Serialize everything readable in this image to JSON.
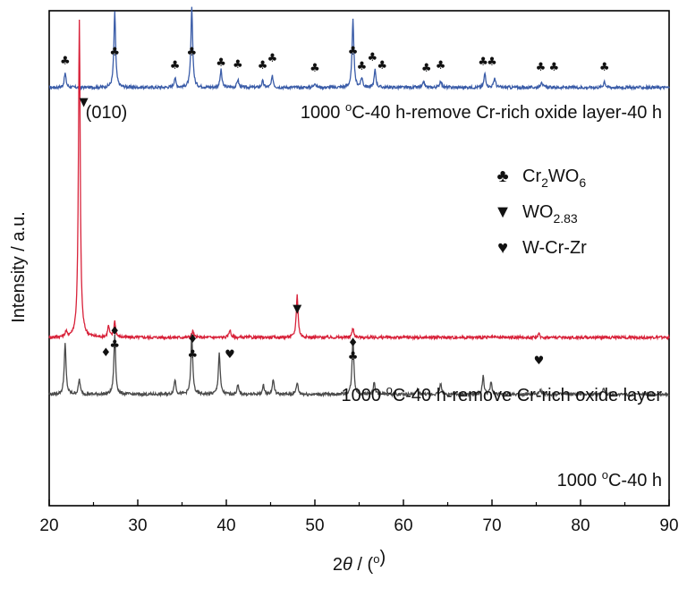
{
  "chart_data": {
    "type": "line",
    "xlabel": "2θ / (°)",
    "ylabel": "Intensity / a.u.",
    "xlim": [
      20,
      90
    ],
    "x_ticks": [
      20,
      30,
      40,
      50,
      60,
      70,
      80,
      90
    ],
    "y_ticks": [],
    "grid": false,
    "legend": {
      "position": "right",
      "entries": [
        {
          "symbol": "♣",
          "label": "Cr2WO6",
          "text_main": "Cr",
          "sub1": "2",
          "text_mid": "WO",
          "sub2": "6"
        },
        {
          "symbol": "▼",
          "label": "WO2.83",
          "text_main": "WO",
          "sub1": "2.83"
        },
        {
          "symbol": "♥",
          "label": "W-Cr-Zr",
          "text_main": "W-Cr-Zr"
        }
      ]
    },
    "series": [
      {
        "name": "1000 °C-40 h-remove Cr-rich oxide layer-40 h",
        "label": "1000 ºC-40 h-remove Cr-rich oxide layer-40 h",
        "color": "#3a5ca8",
        "offset": 0.845,
        "scale": 0.16,
        "peaks": [
          [
            21.8,
            0.18
          ],
          [
            27.4,
            0.95
          ],
          [
            34.2,
            0.12
          ],
          [
            36.1,
            1.0
          ],
          [
            39.4,
            0.22
          ],
          [
            41.3,
            0.1
          ],
          [
            44.1,
            0.08
          ],
          [
            45.2,
            0.14
          ],
          [
            50.0,
            0.06
          ],
          [
            54.3,
            0.85
          ],
          [
            55.3,
            0.12
          ],
          [
            56.8,
            0.22
          ],
          [
            62.3,
            0.07
          ],
          [
            64.2,
            0.09
          ],
          [
            69.2,
            0.18
          ],
          [
            70.3,
            0.12
          ],
          [
            75.6,
            0.08
          ],
          [
            82.7,
            0.08
          ]
        ]
      },
      {
        "name": "1000 °C-40 h-remove Cr-rich oxide layer",
        "label": "1000 ºC-40 h-remove Cr-rich oxide layer",
        "color": "#d8223a",
        "offset": 0.34,
        "scale": 0.64,
        "peaks": [
          [
            21.9,
            0.015
          ],
          [
            23.4,
            1.0
          ],
          [
            26.7,
            0.035
          ],
          [
            27.4,
            0.05
          ],
          [
            36.2,
            0.02
          ],
          [
            40.4,
            0.025
          ],
          [
            48.0,
            0.135
          ],
          [
            54.3,
            0.03
          ],
          [
            75.3,
            0.01
          ]
        ]
      },
      {
        "name": "1000 °C-40 h",
        "label": "1000 ºC-40 h",
        "color": "#4a4a4a",
        "offset": 0.225,
        "scale": 0.12,
        "peaks": [
          [
            21.8,
            0.85
          ],
          [
            23.4,
            0.25
          ],
          [
            27.4,
            1.0
          ],
          [
            34.2,
            0.25
          ],
          [
            36.1,
            1.0
          ],
          [
            39.2,
            0.7
          ],
          [
            41.3,
            0.15
          ],
          [
            44.2,
            0.15
          ],
          [
            45.3,
            0.25
          ],
          [
            48.0,
            0.2
          ],
          [
            54.3,
            0.95
          ],
          [
            56.7,
            0.2
          ],
          [
            61.6,
            0.08
          ],
          [
            64.2,
            0.18
          ],
          [
            69.0,
            0.3
          ],
          [
            69.9,
            0.2
          ],
          [
            75.5,
            0.08
          ],
          [
            82.6,
            0.12
          ]
        ]
      }
    ],
    "markers": [
      {
        "symbol": "♣",
        "x": [
          21.8,
          27.4,
          34.2,
          36.1,
          39.4,
          41.3,
          44.1,
          45.2,
          50.0,
          54.3,
          55.3,
          56.5,
          57.6,
          62.6,
          64.2,
          69.0,
          70.0,
          75.5,
          77.0,
          82.7
        ]
      },
      {
        "symbol": "▼",
        "x": [
          23.9,
          48.0
        ]
      },
      {
        "symbol": "♥",
        "x": [
          40.4,
          75.3
        ]
      },
      {
        "symbol": "♦",
        "x": [
          26.4,
          27.4,
          36.2,
          54.3
        ]
      },
      {
        "symbol": "♣",
        "x": [
          27.4,
          36.2,
          54.3
        ]
      }
    ],
    "annotations": [
      {
        "text": "(010)",
        "near_x": 23.4
      }
    ]
  }
}
